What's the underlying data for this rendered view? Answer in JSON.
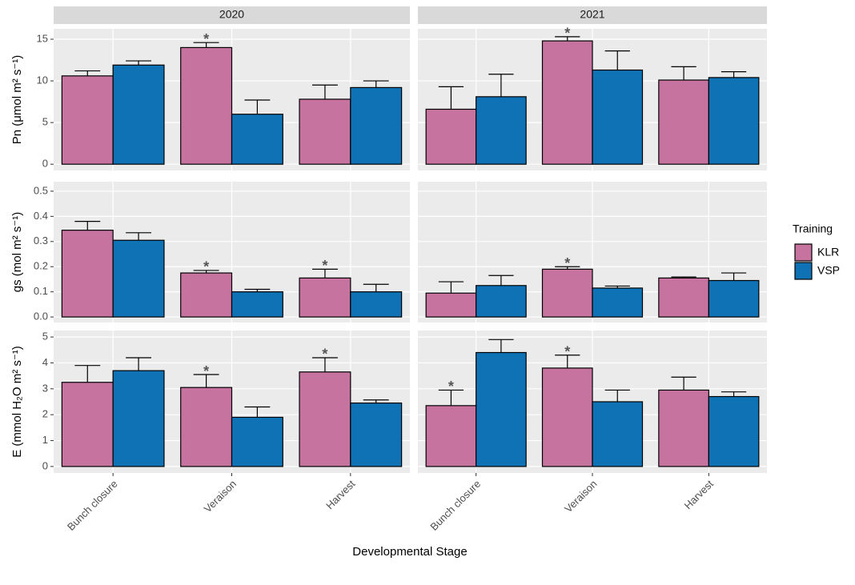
{
  "chart_data": {
    "type": "bar",
    "xlabel": "Developmental Stage",
    "legend_title": "Training",
    "legend": [
      {
        "name": "KLR",
        "color": "#c673a0"
      },
      {
        "name": "VSP",
        "color": "#0f72b5"
      }
    ],
    "columns": [
      "2020",
      "2021"
    ],
    "categories": [
      "Bunch closure",
      "Veraison",
      "Harvest"
    ],
    "rows": [
      {
        "ylabel": "Pn (μmol m² s⁻¹)",
        "ylim": [
          -0.75,
          16.25
        ],
        "yticks": [
          0,
          5,
          10,
          15
        ],
        "panels": [
          {
            "series": [
              {
                "values": [
                  10.6,
                  14.0,
                  7.8
                ],
                "errors": [
                  0.6,
                  0.6,
                  1.7
                ],
                "annotations": [
                  null,
                  "*",
                  null
                ]
              },
              {
                "values": [
                  11.9,
                  6.0,
                  9.2
                ],
                "errors": [
                  0.5,
                  1.7,
                  0.8
                ],
                "annotations": [
                  null,
                  null,
                  null
                ]
              }
            ]
          },
          {
            "series": [
              {
                "values": [
                  6.6,
                  14.8,
                  10.1
                ],
                "errors": [
                  2.7,
                  0.5,
                  1.6
                ],
                "annotations": [
                  null,
                  "*",
                  null
                ]
              },
              {
                "values": [
                  8.1,
                  11.3,
                  10.4
                ],
                "errors": [
                  2.7,
                  2.3,
                  0.7
                ],
                "annotations": [
                  null,
                  null,
                  null
                ]
              }
            ]
          }
        ]
      },
      {
        "ylabel": "gs (mol m² s⁻¹)",
        "ylim": [
          -0.022,
          0.538
        ],
        "yticks": [
          {
            "value": 0,
            "label": "0.0"
          },
          0.1,
          0.2,
          0.3,
          0.4,
          0.5
        ],
        "panels": [
          {
            "series": [
              {
                "values": [
                  0.345,
                  0.175,
                  0.155
                ],
                "errors": [
                  0.035,
                  0.01,
                  0.035
                ],
                "annotations": [
                  null,
                  "*",
                  "*"
                ]
              },
              {
                "values": [
                  0.305,
                  0.1,
                  0.1
                ],
                "errors": [
                  0.03,
                  0.01,
                  0.03
                ],
                "annotations": [
                  null,
                  null,
                  null
                ]
              }
            ]
          },
          {
            "series": [
              {
                "values": [
                  0.095,
                  0.19,
                  0.155
                ],
                "errors": [
                  0.045,
                  0.01,
                  0.004
                ],
                "annotations": [
                  null,
                  "*",
                  null
                ]
              },
              {
                "values": [
                  0.125,
                  0.115,
                  0.145
                ],
                "errors": [
                  0.04,
                  0.008,
                  0.03
                ],
                "annotations": [
                  null,
                  null,
                  null
                ]
              }
            ]
          }
        ]
      },
      {
        "ylabel": "E (mmol H₂O m² s⁻¹)",
        "ylim": [
          -0.25,
          5.25
        ],
        "yticks": [
          0,
          1,
          2,
          3,
          4,
          5
        ],
        "panels": [
          {
            "series": [
              {
                "values": [
                  3.25,
                  3.05,
                  3.65
                ],
                "errors": [
                  0.65,
                  0.5,
                  0.55
                ],
                "annotations": [
                  null,
                  "*",
                  "*"
                ]
              },
              {
                "values": [
                  3.7,
                  1.9,
                  2.45
                ],
                "errors": [
                  0.5,
                  0.4,
                  0.12
                ],
                "annotations": [
                  null,
                  null,
                  null
                ]
              }
            ]
          },
          {
            "series": [
              {
                "values": [
                  2.35,
                  3.8,
                  2.95
                ],
                "errors": [
                  0.6,
                  0.5,
                  0.5
                ],
                "annotations": [
                  "*",
                  "*",
                  null
                ]
              },
              {
                "values": [
                  4.4,
                  2.5,
                  2.7
                ],
                "errors": [
                  0.5,
                  0.45,
                  0.18
                ],
                "annotations": [
                  null,
                  null,
                  null
                ]
              }
            ]
          }
        ]
      }
    ]
  }
}
